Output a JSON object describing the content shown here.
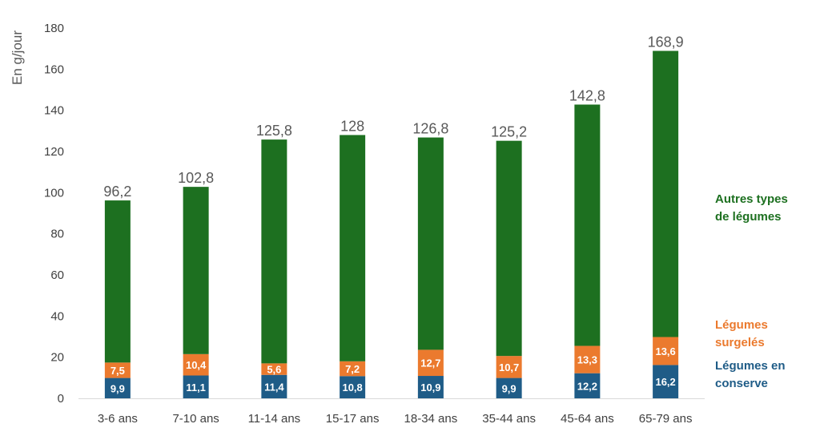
{
  "chart_data": {
    "type": "bar",
    "stacked": true,
    "ylabel": "En g/jour",
    "ylim": [
      0,
      180
    ],
    "yticks": [
      0,
      20,
      40,
      60,
      80,
      100,
      120,
      140,
      160,
      180
    ],
    "grid": false,
    "categories": [
      "3-6 ans",
      "7-10 ans",
      "11-14 ans",
      "15-17 ans",
      "18-34 ans",
      "35-44 ans",
      "45-64 ans",
      "65-79 ans"
    ],
    "totals": [
      "96,2",
      "102,8",
      "125,8",
      "128",
      "126,8",
      "125,2",
      "142,8",
      "168,9"
    ],
    "total_values": [
      96.2,
      102.8,
      125.8,
      128,
      126.8,
      125.2,
      142.8,
      168.9
    ],
    "series": [
      {
        "name": "Légumes en conserve",
        "color": "#1f5c87",
        "values": [
          9.9,
          11.1,
          11.4,
          10.8,
          10.9,
          9.9,
          12.2,
          16.2
        ],
        "labels": [
          "9,9",
          "11,1",
          "11,4",
          "10,8",
          "10,9",
          "9,9",
          "12,2",
          "16,2"
        ]
      },
      {
        "name": "Légumes surgelés",
        "color": "#eb7a2e",
        "values": [
          7.5,
          10.4,
          5.6,
          7.2,
          12.7,
          10.7,
          13.3,
          13.6
        ],
        "labels": [
          "7,5",
          "10,4",
          "5,6",
          "7,2",
          "12,7",
          "10,7",
          "13,3",
          "13,6"
        ]
      },
      {
        "name": "Autres types de légumes",
        "color": "#1d7020",
        "values": [
          78.8,
          81.3,
          108.8,
          110.0,
          103.2,
          104.6,
          117.3,
          139.1
        ]
      }
    ],
    "legend": {
      "placement": "right",
      "entries": [
        {
          "lines": [
            "Autres types",
            "de légumes"
          ],
          "color": "#1d7020"
        },
        {
          "lines": [
            "Légumes",
            "surgelés"
          ],
          "color": "#eb7a2e"
        },
        {
          "lines": [
            "Légumes en",
            "conserve"
          ],
          "color": "#1f5c87"
        }
      ]
    }
  }
}
